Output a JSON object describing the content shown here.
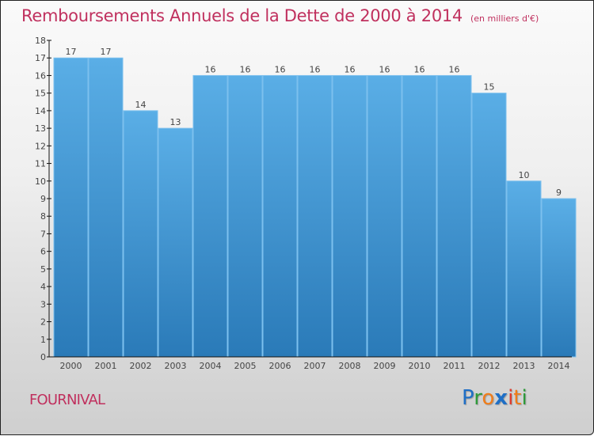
{
  "header": {
    "title": "Remboursements Annuels de la Dette de 2000 à 2014",
    "unit": "(en milliers d'€)"
  },
  "footer": {
    "commune": "FOURNIVAL",
    "logo_letters": [
      {
        "ch": "P",
        "color": "#1f6fc6"
      },
      {
        "ch": "r",
        "color": "#2f9a3a"
      },
      {
        "ch": "o",
        "color": "#f07d1a"
      },
      {
        "ch": "x",
        "color": "#1f6fc6"
      },
      {
        "ch": "i",
        "color": "#e03a2c"
      },
      {
        "ch": "t",
        "color": "#f07d1a"
      },
      {
        "ch": "i",
        "color": "#2f9a3a"
      }
    ]
  },
  "colors": {
    "title": "#c0305e",
    "bar_top": "#5aaee6",
    "bar_bottom": "#2a7ab8",
    "axis": "#111111"
  },
  "chart_data": {
    "type": "bar",
    "title": "Remboursements Annuels de la Dette de 2000 à 2014",
    "subtitle": "(en milliers d'€)",
    "xlabel": "",
    "ylabel": "",
    "categories": [
      "2000",
      "2001",
      "2002",
      "2003",
      "2004",
      "2005",
      "2006",
      "2007",
      "2008",
      "2009",
      "2010",
      "2011",
      "2012",
      "2013",
      "2014"
    ],
    "values": [
      17,
      17,
      14,
      13,
      16,
      16,
      16,
      16,
      16,
      16,
      16,
      16,
      15,
      10,
      9
    ],
    "ylim": [
      0,
      18
    ],
    "yticks": [
      0,
      1,
      2,
      3,
      4,
      5,
      6,
      7,
      8,
      9,
      10,
      11,
      12,
      13,
      14,
      15,
      16,
      17,
      18
    ],
    "grid": false,
    "data_labels": true,
    "legend": "none"
  }
}
